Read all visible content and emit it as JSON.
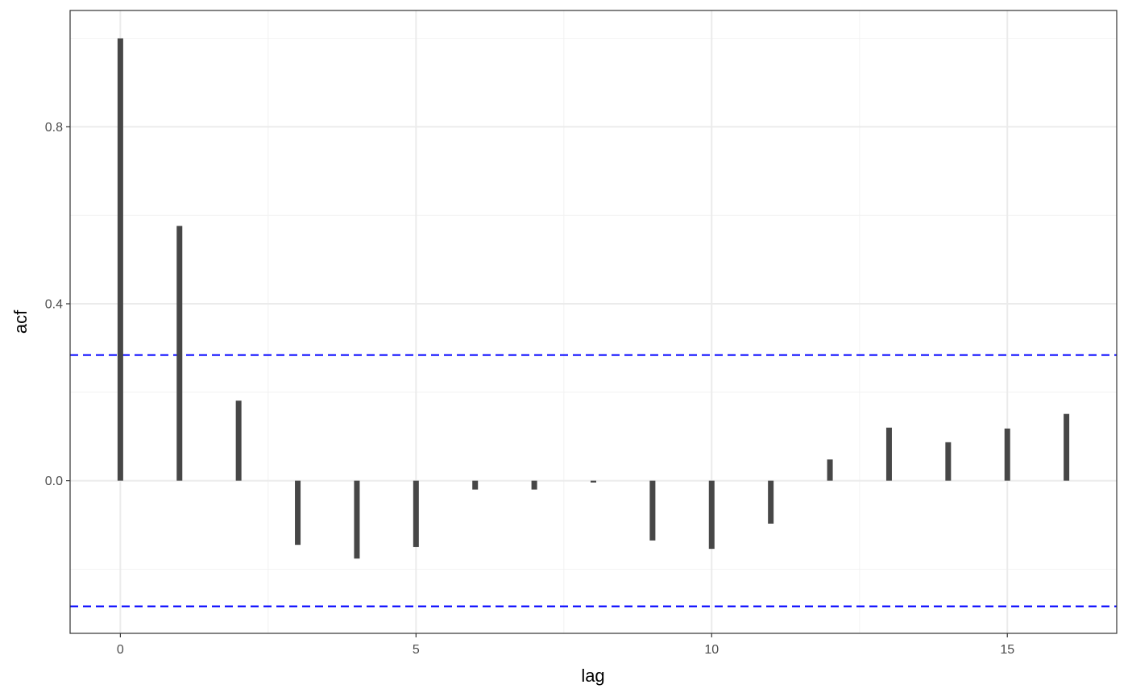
{
  "chart_data": {
    "type": "bar",
    "xlabel": "lag",
    "ylabel": "acf",
    "x": [
      0,
      1,
      2,
      3,
      4,
      5,
      6,
      7,
      8,
      9,
      10,
      11,
      12,
      13,
      14,
      15,
      16
    ],
    "values": [
      1.0,
      0.576,
      0.181,
      -0.145,
      -0.176,
      -0.15,
      -0.02,
      -0.02,
      -0.004,
      -0.135,
      -0.154,
      -0.097,
      0.048,
      0.12,
      0.087,
      0.118,
      0.151
    ],
    "xlim": [
      -0.85,
      16.85
    ],
    "ylim": [
      -0.345,
      1.063
    ],
    "x_ticks": [
      0,
      5,
      10,
      15
    ],
    "x_tick_labels": [
      "0",
      "5",
      "10",
      "15"
    ],
    "x_minor_ticks": [
      2.5,
      7.5,
      12.5
    ],
    "y_ticks": [
      0.0,
      0.4,
      0.8
    ],
    "y_tick_labels": [
      "0.0",
      "0.4",
      "0.8"
    ],
    "y_minor_ticks": [
      -0.2,
      0.2,
      0.6,
      1.0
    ],
    "confidence_bounds": [
      0.284,
      -0.284
    ],
    "grid": true,
    "colors": {
      "bars": "#474747",
      "bounds": "#0000ff"
    }
  }
}
